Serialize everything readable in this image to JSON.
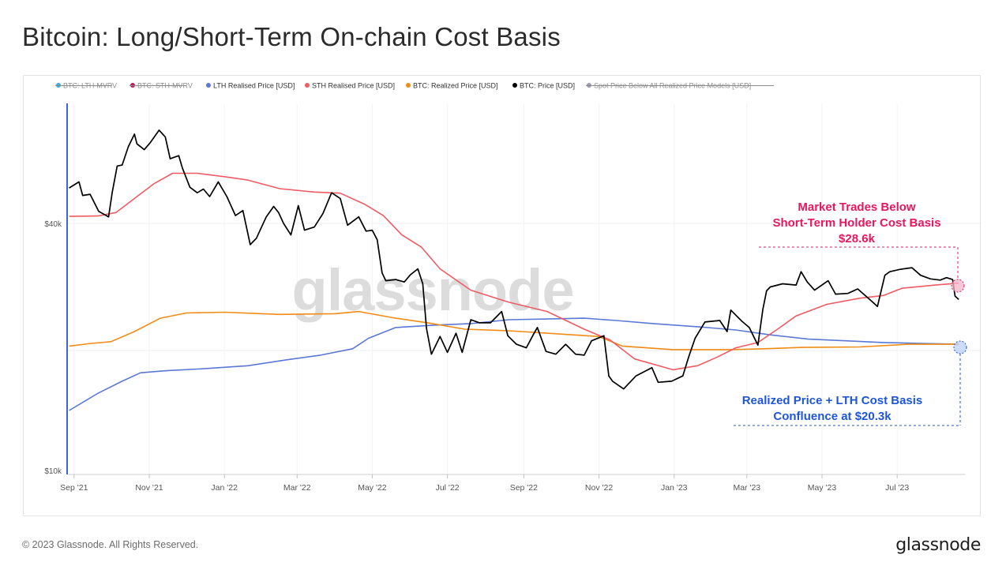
{
  "page": {
    "title": "Bitcoin: Long/Short-Term On-chain Cost Basis",
    "copyright": "© 2023 Glassnode. All Rights Reserved.",
    "brand": "glassnode",
    "watermark": "glassnode"
  },
  "legend": [
    {
      "label": "BTC: LTH-MVRV",
      "color": "#3fa9df",
      "struck": true
    },
    {
      "label": "BTC: STH-MVRV",
      "color": "#c0185a",
      "struck": true
    },
    {
      "label": "LTH Realised Price [USD]",
      "color": "#5b78d6",
      "struck": false
    },
    {
      "label": "STH Realised Price [USD]",
      "color": "#ef5b63",
      "struck": false
    },
    {
      "label": "BTC: Realized Price [USD]",
      "color": "#f08b14",
      "struck": false
    },
    {
      "label": "BTC: Price [USD]",
      "color": "#000000",
      "struck": false
    },
    {
      "label": "Spot Price Below All Realized Price Models [USD]",
      "color": "#9a9ab5",
      "struck": true
    }
  ],
  "annotations": {
    "sth": {
      "lines": [
        "Market Trades Below",
        "Short-Term Holder Cost Basis",
        "$28.6k"
      ],
      "color": "#e8175d"
    },
    "confluence": {
      "lines": [
        "Realized Price + LTH Cost Basis",
        "Confluence at $20.3k"
      ],
      "color": "#1f56d8"
    }
  },
  "chart_data": {
    "type": "line",
    "title": "Bitcoin: Long/Short-Term On-chain Cost Basis",
    "y_scale": "log",
    "ylim": [
      10000,
      100000
    ],
    "y_ticks": [
      {
        "value": 10000,
        "label": "$10k"
      },
      {
        "value": 40000,
        "label": "$40k"
      }
    ],
    "x_range": [
      "2021-08-27",
      "2023-08-25"
    ],
    "x_ticks": [
      {
        "date": "2021-09-01",
        "label": "Sep '21"
      },
      {
        "date": "2021-11-01",
        "label": "Nov '21"
      },
      {
        "date": "2022-01-01",
        "label": "Jan '22"
      },
      {
        "date": "2022-03-01",
        "label": "Mar '22"
      },
      {
        "date": "2022-05-01",
        "label": "May '22"
      },
      {
        "date": "2022-07-01",
        "label": "Jul '22"
      },
      {
        "date": "2022-09-01",
        "label": "Sep '22"
      },
      {
        "date": "2022-11-01",
        "label": "Nov '22"
      },
      {
        "date": "2023-01-01",
        "label": "Jan '23"
      },
      {
        "date": "2023-03-01",
        "label": "Mar '23"
      },
      {
        "date": "2023-05-01",
        "label": "May '23"
      },
      {
        "date": "2023-07-01",
        "label": "Jul '23"
      }
    ],
    "grid": true,
    "legend_position": "top",
    "series": [
      {
        "name": "BTC: Price [USD]",
        "color": "#000000",
        "points": [
          [
            "2021-08-28",
            48800
          ],
          [
            "2021-09-05",
            50500
          ],
          [
            "2021-09-08",
            46800
          ],
          [
            "2021-09-14",
            47100
          ],
          [
            "2021-09-21",
            42800
          ],
          [
            "2021-09-29",
            41500
          ],
          [
            "2021-10-02",
            47700
          ],
          [
            "2021-10-06",
            55200
          ],
          [
            "2021-10-10",
            55500
          ],
          [
            "2021-10-15",
            61500
          ],
          [
            "2021-10-20",
            66000
          ],
          [
            "2021-10-22",
            62500
          ],
          [
            "2021-10-28",
            60500
          ],
          [
            "2021-11-02",
            63000
          ],
          [
            "2021-11-09",
            67500
          ],
          [
            "2021-11-14",
            65000
          ],
          [
            "2021-11-18",
            57500
          ],
          [
            "2021-11-25",
            58500
          ],
          [
            "2021-11-28",
            54500
          ],
          [
            "2021-12-04",
            49000
          ],
          [
            "2021-12-10",
            47500
          ],
          [
            "2021-12-15",
            48500
          ],
          [
            "2021-12-20",
            46500
          ],
          [
            "2021-12-27",
            50500
          ],
          [
            "2022-01-03",
            46500
          ],
          [
            "2022-01-10",
            41800
          ],
          [
            "2022-01-16",
            43000
          ],
          [
            "2022-01-22",
            35500
          ],
          [
            "2022-01-27",
            36800
          ],
          [
            "2022-02-04",
            41500
          ],
          [
            "2022-02-10",
            44000
          ],
          [
            "2022-02-14",
            42500
          ],
          [
            "2022-02-18",
            40000
          ],
          [
            "2022-02-24",
            37500
          ],
          [
            "2022-03-02",
            44200
          ],
          [
            "2022-03-07",
            38500
          ],
          [
            "2022-03-15",
            39200
          ],
          [
            "2022-03-22",
            42300
          ],
          [
            "2022-03-29",
            47500
          ],
          [
            "2022-04-05",
            46000
          ],
          [
            "2022-04-11",
            39600
          ],
          [
            "2022-04-20",
            41500
          ],
          [
            "2022-04-26",
            38300
          ],
          [
            "2022-05-01",
            38500
          ],
          [
            "2022-05-05",
            36500
          ],
          [
            "2022-05-09",
            30300
          ],
          [
            "2022-05-12",
            29000
          ],
          [
            "2022-05-20",
            29200
          ],
          [
            "2022-05-27",
            28800
          ],
          [
            "2022-06-01",
            30000
          ],
          [
            "2022-06-07",
            31000
          ],
          [
            "2022-06-11",
            28500
          ],
          [
            "2022-06-14",
            22200
          ],
          [
            "2022-06-18",
            19200
          ],
          [
            "2022-06-25",
            21200
          ],
          [
            "2022-07-01",
            19400
          ],
          [
            "2022-07-08",
            21600
          ],
          [
            "2022-07-13",
            19400
          ],
          [
            "2022-07-20",
            23300
          ],
          [
            "2022-07-27",
            22900
          ],
          [
            "2022-08-05",
            22900
          ],
          [
            "2022-08-14",
            24400
          ],
          [
            "2022-08-19",
            21300
          ],
          [
            "2022-08-26",
            20300
          ],
          [
            "2022-09-03",
            19900
          ],
          [
            "2022-09-09",
            21500
          ],
          [
            "2022-09-12",
            22300
          ],
          [
            "2022-09-19",
            19500
          ],
          [
            "2022-09-27",
            19200
          ],
          [
            "2022-10-05",
            20300
          ],
          [
            "2022-10-13",
            19200
          ],
          [
            "2022-10-20",
            19100
          ],
          [
            "2022-10-26",
            20700
          ],
          [
            "2022-11-05",
            21300
          ],
          [
            "2022-11-09",
            17000
          ],
          [
            "2022-11-12",
            16500
          ],
          [
            "2022-11-21",
            15800
          ],
          [
            "2022-12-01",
            17000
          ],
          [
            "2022-12-14",
            17800
          ],
          [
            "2022-12-19",
            16400
          ],
          [
            "2022-12-30",
            16500
          ],
          [
            "2023-01-08",
            17000
          ],
          [
            "2023-01-13",
            19000
          ],
          [
            "2023-01-18",
            21000
          ],
          [
            "2023-01-26",
            23000
          ],
          [
            "2023-02-07",
            23200
          ],
          [
            "2023-02-13",
            21800
          ],
          [
            "2023-02-16",
            24600
          ],
          [
            "2023-02-25",
            23100
          ],
          [
            "2023-03-03",
            22300
          ],
          [
            "2023-03-10",
            20200
          ],
          [
            "2023-03-14",
            24700
          ],
          [
            "2023-03-17",
            27400
          ],
          [
            "2023-03-20",
            28000
          ],
          [
            "2023-03-30",
            28500
          ],
          [
            "2023-04-10",
            28300
          ],
          [
            "2023-04-14",
            30500
          ],
          [
            "2023-04-19",
            28800
          ],
          [
            "2023-04-25",
            27500
          ],
          [
            "2023-05-06",
            29000
          ],
          [
            "2023-05-12",
            26900
          ],
          [
            "2023-05-22",
            27000
          ],
          [
            "2023-05-30",
            27700
          ],
          [
            "2023-06-10",
            25900
          ],
          [
            "2023-06-15",
            25100
          ],
          [
            "2023-06-21",
            29900
          ],
          [
            "2023-06-25",
            30500
          ],
          [
            "2023-07-03",
            30900
          ],
          [
            "2023-07-13",
            31200
          ],
          [
            "2023-07-20",
            29900
          ],
          [
            "2023-07-28",
            29300
          ],
          [
            "2023-08-05",
            29100
          ],
          [
            "2023-08-10",
            29500
          ],
          [
            "2023-08-15",
            29200
          ],
          [
            "2023-08-17",
            26600
          ],
          [
            "2023-08-20",
            26100
          ]
        ]
      },
      {
        "name": "STH Realised Price [USD]",
        "color": "#ef5b63",
        "points": [
          [
            "2021-08-28",
            41600
          ],
          [
            "2021-09-20",
            41700
          ],
          [
            "2021-10-05",
            42500
          ],
          [
            "2021-10-20",
            46000
          ],
          [
            "2021-11-05",
            50000
          ],
          [
            "2021-11-20",
            53000
          ],
          [
            "2021-12-10",
            53000
          ],
          [
            "2022-01-01",
            52000
          ],
          [
            "2022-01-20",
            51000
          ],
          [
            "2022-02-15",
            48600
          ],
          [
            "2022-03-15",
            47700
          ],
          [
            "2022-04-05",
            47400
          ],
          [
            "2022-04-25",
            44500
          ],
          [
            "2022-05-10",
            41800
          ],
          [
            "2022-05-25",
            37500
          ],
          [
            "2022-06-10",
            35000
          ],
          [
            "2022-06-25",
            31000
          ],
          [
            "2022-07-20",
            27500
          ],
          [
            "2022-08-20",
            25700
          ],
          [
            "2022-09-20",
            24400
          ],
          [
            "2022-10-20",
            22100
          ],
          [
            "2022-11-10",
            20800
          ],
          [
            "2022-11-30",
            18700
          ],
          [
            "2022-12-31",
            17600
          ],
          [
            "2023-01-20",
            18000
          ],
          [
            "2023-02-05",
            18900
          ],
          [
            "2023-02-20",
            19900
          ],
          [
            "2023-03-10",
            20500
          ],
          [
            "2023-03-25",
            22000
          ],
          [
            "2023-04-10",
            23800
          ],
          [
            "2023-05-05",
            25400
          ],
          [
            "2023-06-01",
            26300
          ],
          [
            "2023-06-20",
            26700
          ],
          [
            "2023-07-05",
            27800
          ],
          [
            "2023-08-01",
            28300
          ],
          [
            "2023-08-20",
            28600
          ]
        ]
      },
      {
        "name": "BTC: Realized Price [USD]",
        "color": "#f08b14",
        "points": [
          [
            "2021-08-28",
            20100
          ],
          [
            "2021-09-15",
            20400
          ],
          [
            "2021-10-01",
            20600
          ],
          [
            "2021-10-20",
            21800
          ],
          [
            "2021-11-10",
            23500
          ],
          [
            "2021-12-01",
            24200
          ],
          [
            "2022-01-01",
            24300
          ],
          [
            "2022-02-15",
            24000
          ],
          [
            "2022-04-01",
            24100
          ],
          [
            "2022-04-20",
            24400
          ],
          [
            "2022-05-20",
            23500
          ],
          [
            "2022-06-15",
            22900
          ],
          [
            "2022-07-15",
            22100
          ],
          [
            "2022-08-20",
            21900
          ],
          [
            "2022-10-01",
            21500
          ],
          [
            "2022-11-01",
            21200
          ],
          [
            "2022-11-20",
            20100
          ],
          [
            "2022-12-31",
            19700
          ],
          [
            "2023-02-15",
            19700
          ],
          [
            "2023-03-15",
            19800
          ],
          [
            "2023-04-15",
            19950
          ],
          [
            "2023-06-01",
            20000
          ],
          [
            "2023-07-10",
            20300
          ],
          [
            "2023-08-20",
            20300
          ]
        ]
      },
      {
        "name": "LTH Realised Price [USD]",
        "color": "#5b78d6",
        "points": [
          [
            "2021-08-28",
            14000
          ],
          [
            "2021-09-20",
            15400
          ],
          [
            "2021-10-10",
            16500
          ],
          [
            "2021-10-25",
            17300
          ],
          [
            "2021-11-15",
            17500
          ],
          [
            "2021-12-15",
            17700
          ],
          [
            "2022-01-20",
            18000
          ],
          [
            "2022-02-20",
            18600
          ],
          [
            "2022-03-20",
            19100
          ],
          [
            "2022-04-15",
            19800
          ],
          [
            "2022-04-28",
            21000
          ],
          [
            "2022-05-20",
            22300
          ],
          [
            "2022-06-20",
            22600
          ],
          [
            "2022-07-20",
            22800
          ],
          [
            "2022-08-20",
            23300
          ],
          [
            "2022-09-20",
            23400
          ],
          [
            "2022-10-20",
            23500
          ],
          [
            "2022-11-15",
            23200
          ],
          [
            "2022-12-15",
            22800
          ],
          [
            "2023-01-20",
            22400
          ],
          [
            "2023-02-20",
            22000
          ],
          [
            "2023-03-20",
            21400
          ],
          [
            "2023-04-20",
            20900
          ],
          [
            "2023-05-20",
            20700
          ],
          [
            "2023-06-20",
            20500
          ],
          [
            "2023-07-20",
            20400
          ],
          [
            "2023-08-20",
            20300
          ]
        ]
      }
    ]
  }
}
